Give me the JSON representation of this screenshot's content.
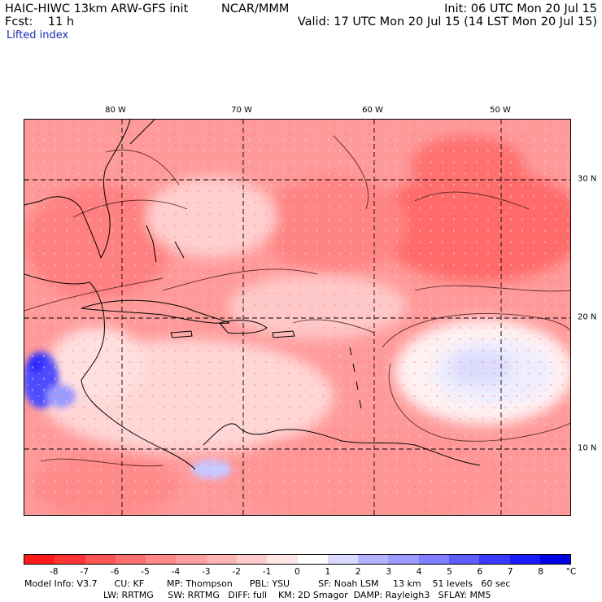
{
  "header": {
    "model": "HAIC-HIWC 13km ARW-GFS init",
    "org": "NCAR/MMM",
    "init": "Init: 06 UTC Mon 20 Jul 15",
    "fcst": "Fcst:    11 h",
    "valid": "Valid: 17 UTC Mon 20 Jul 15 (14 LST Mon 20 Jul 15)",
    "field": "Lifted index"
  },
  "axes": {
    "lon_labels": [
      "80 W",
      "70 W",
      "60 W",
      "50 W"
    ],
    "lat_labels": [
      "30 N",
      "20 N",
      "10 N"
    ]
  },
  "colorbar": {
    "labels": [
      "-8",
      "-7",
      "-6",
      "-5",
      "-4",
      "-3",
      "-2",
      "-1",
      "0",
      "1",
      "2",
      "3",
      "4",
      "5",
      "6",
      "7",
      "8"
    ],
    "unit": "°C",
    "colors": [
      "#ff1a1a",
      "#ff3333",
      "#ff5555",
      "#ff6f6f",
      "#ff8888",
      "#ff9f9f",
      "#ffb4b4",
      "#ffcccc",
      "#ffe6e6",
      "#ffffff",
      "#d9d9ff",
      "#b3b3ff",
      "#9a9aff",
      "#7f7fff",
      "#5c5cff",
      "#3a3aff",
      "#1a1aff",
      "#0000e6"
    ]
  },
  "model_info": {
    "line1": "Model Info: V3.7      CU: KF        MP: Thompson      PBL: YSU          SF: Noah LSM     13 km    51 levels   60 sec",
    "line2": "LW: RRTMG     SW: RRTMG   DIFF: full    KM: 2D Smagor  DAMP: Rayleigh3   SFLAY: MM5"
  }
}
